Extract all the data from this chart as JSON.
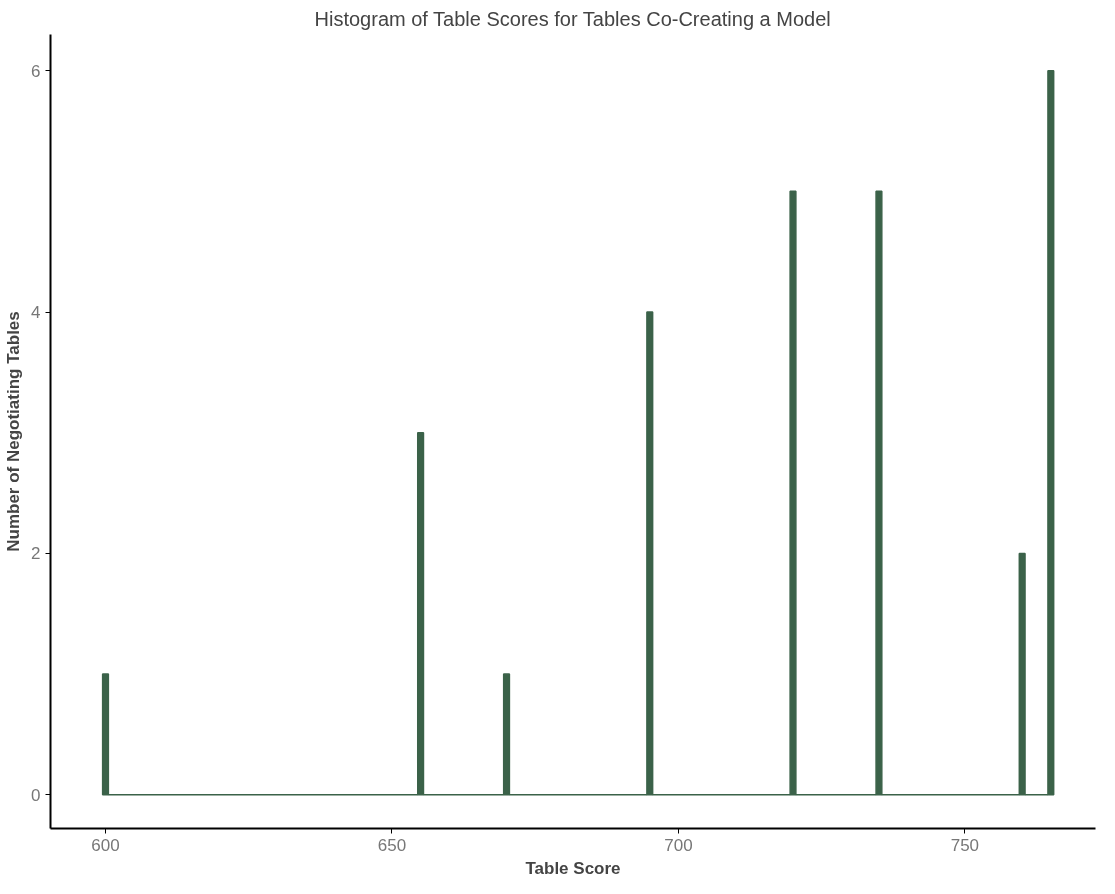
{
  "chart_data": {
    "type": "histogram",
    "title": "Histogram of Table Scores for Tables Co-Creating a Model",
    "xlabel": "Table Score",
    "ylabel": "Number of Negotiating Tables",
    "bins": [
      599.5,
      600.5,
      654.5,
      655.5,
      669.5,
      670.5,
      694.5,
      695.5,
      719.5,
      720.5,
      734.5,
      735.5,
      759.5,
      760.5,
      764.5,
      765.5
    ],
    "values": [
      1,
      0,
      3,
      0,
      1,
      0,
      4,
      0,
      5,
      0,
      5,
      0,
      2,
      0,
      6
    ],
    "color": "#3b6249",
    "xlim": [
      590.4,
      772.8
    ],
    "ylim": [
      -0.28,
      6.3
    ],
    "xticks": [
      600,
      650,
      700,
      750
    ],
    "yticks": [
      0,
      2,
      4,
      6
    ],
    "grid": false
  }
}
